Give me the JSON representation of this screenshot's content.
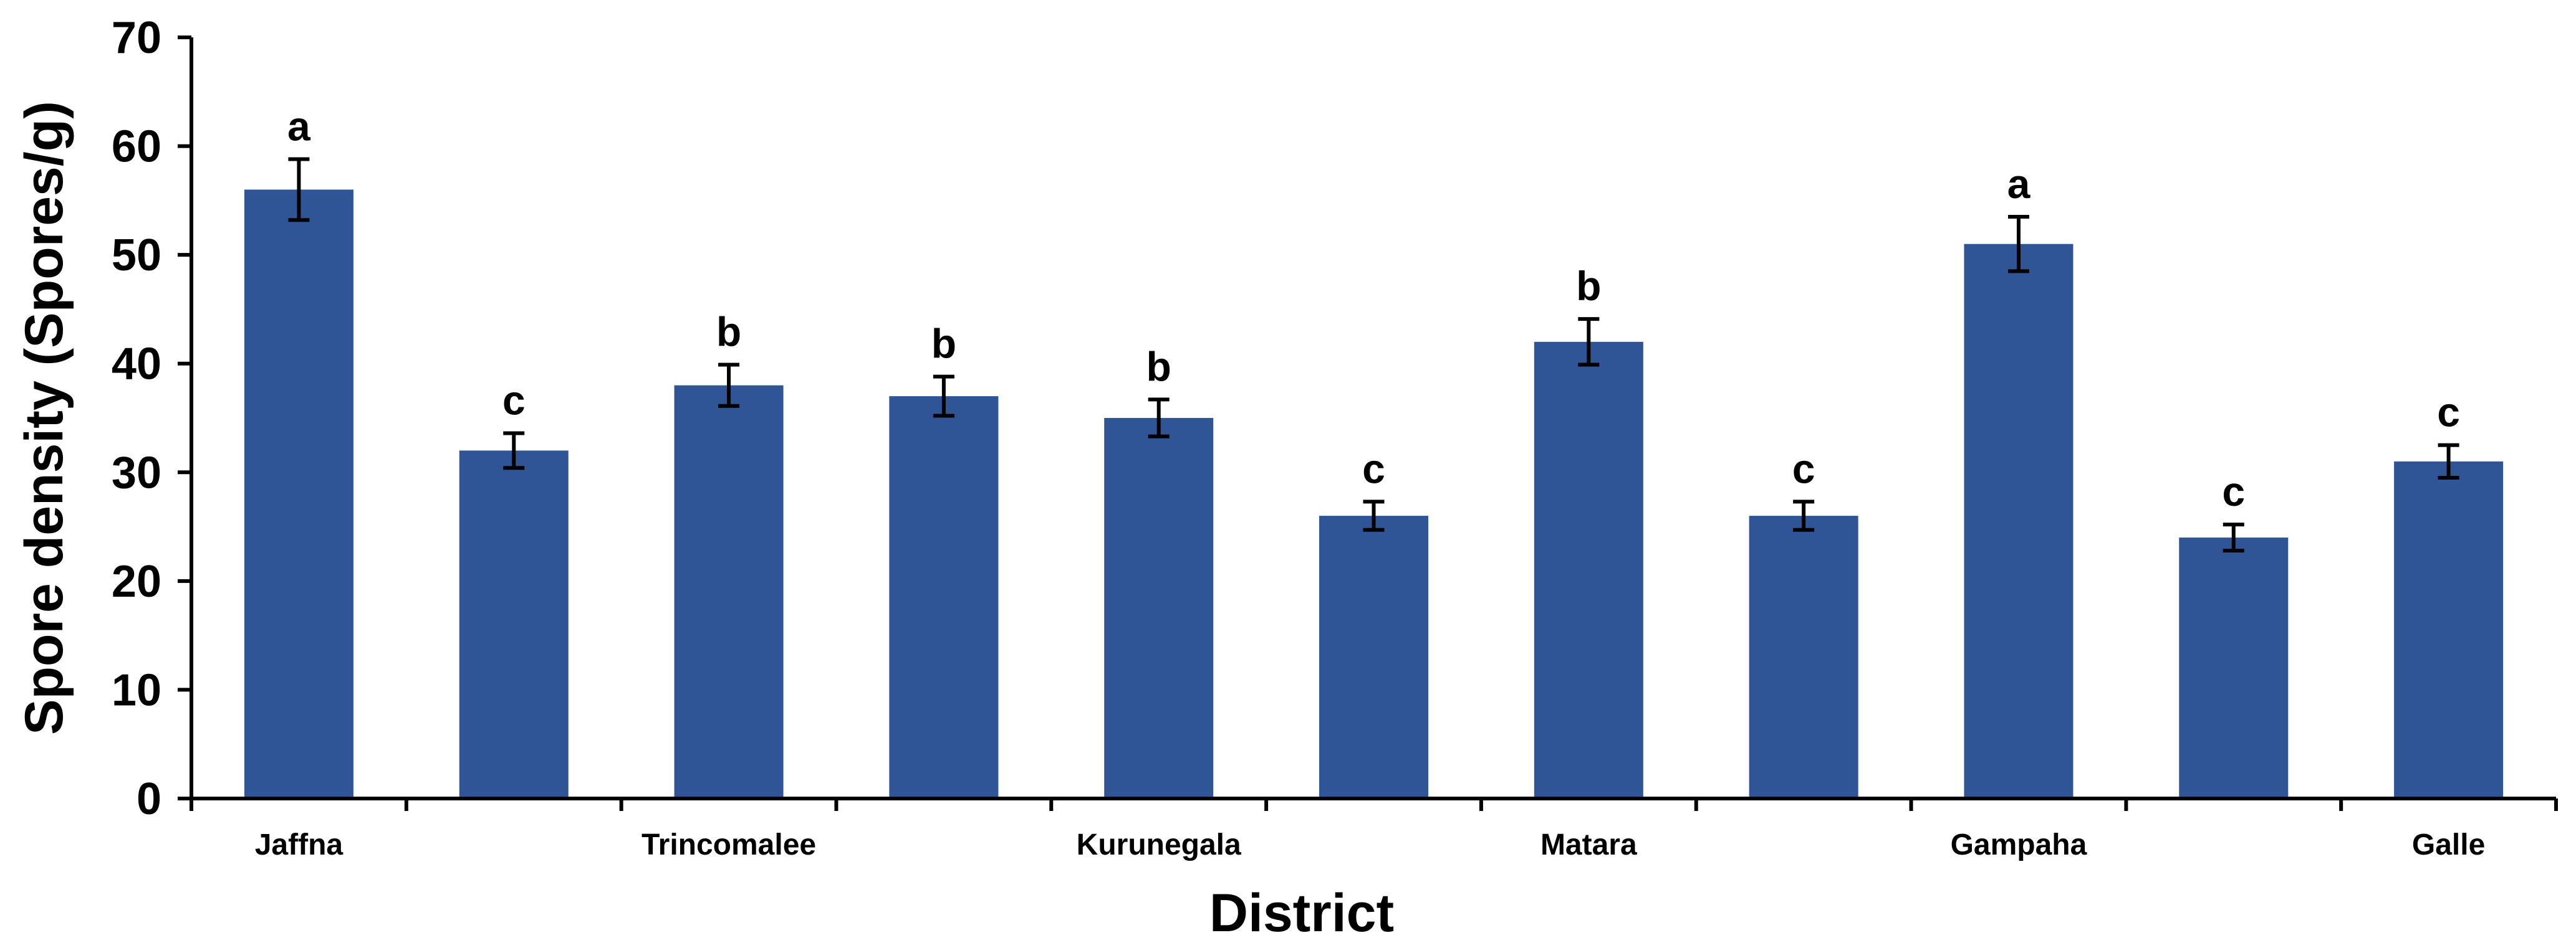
{
  "chart_data": {
    "type": "bar",
    "title": "",
    "xlabel": "District",
    "ylabel": "Spore density (Spores/g)",
    "ylim": [
      0,
      70
    ],
    "yticks": [
      "0",
      "10",
      "20",
      "30",
      "40",
      "50",
      "60",
      "70"
    ],
    "categories": [
      "Jaffna",
      "",
      "Trincomalee",
      "",
      "Kurunegala",
      "",
      "Matara",
      "",
      "Gampaha",
      "",
      "Galle"
    ],
    "values": [
      56,
      32,
      38,
      37,
      35,
      26,
      42,
      26,
      51,
      24,
      31
    ],
    "errors": [
      2.8,
      1.6,
      1.9,
      1.8,
      1.7,
      1.3,
      2.1,
      1.3,
      2.5,
      1.2,
      1.5
    ],
    "significance": [
      "a",
      "c",
      "b",
      "b",
      "b",
      "c",
      "b",
      "c",
      "a",
      "c",
      "c"
    ],
    "grid": false,
    "bar_color": "#2F5597",
    "error_color": "#000000",
    "axis_color": "#000000"
  }
}
